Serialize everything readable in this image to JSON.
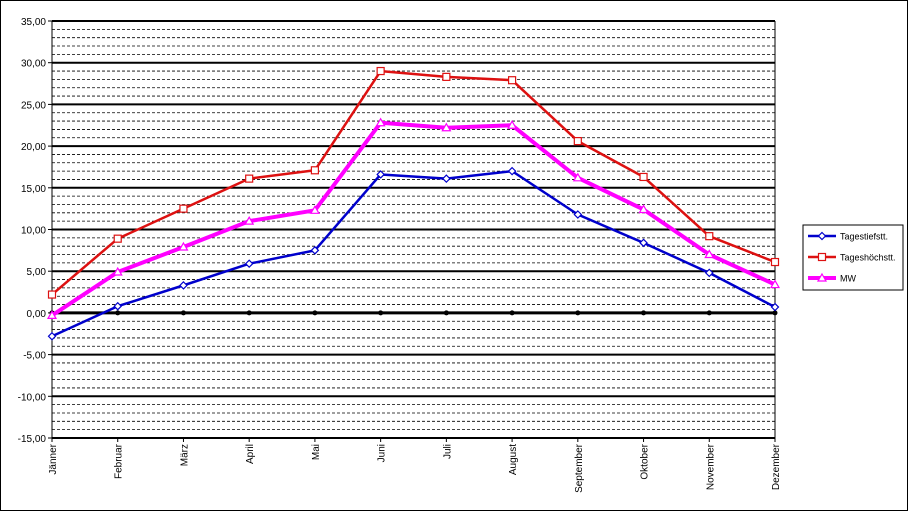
{
  "chart_data": {
    "type": "line",
    "categories": [
      "Jänner",
      "Februar",
      "März",
      "April",
      "Mai",
      "Juni",
      "Juli",
      "August",
      "September",
      "Oktober",
      "November",
      "Dezember"
    ],
    "series": [
      {
        "name": "Tagestiefstt.",
        "color": "#0000cc",
        "marker": "diamond",
        "values": [
          -2.8,
          0.8,
          3.3,
          5.9,
          7.5,
          16.6,
          16.1,
          17.0,
          11.8,
          8.4,
          4.8,
          0.7
        ]
      },
      {
        "name": "Tageshöchstt.",
        "color": "#dd1111",
        "marker": "square",
        "values": [
          2.2,
          8.9,
          12.5,
          16.1,
          17.1,
          29.0,
          28.3,
          27.9,
          20.6,
          16.3,
          9.2,
          6.1
        ]
      },
      {
        "name": "MW",
        "color": "#ff00ff",
        "marker": "triangle",
        "values": [
          -0.3,
          4.9,
          7.9,
          11.0,
          12.3,
          22.8,
          22.2,
          22.5,
          16.2,
          12.4,
          7.0,
          3.4
        ]
      }
    ],
    "ylim": [
      -15,
      35
    ],
    "yticks": [
      {
        "value": -15,
        "label": "-15,00"
      },
      {
        "value": -10,
        "label": "-10,00"
      },
      {
        "value": -5,
        "label": "-5,00"
      },
      {
        "value": 0,
        "label": "0,00"
      },
      {
        "value": 5,
        "label": "5,00"
      },
      {
        "value": 10,
        "label": "10,00"
      },
      {
        "value": 15,
        "label": "15,00"
      },
      {
        "value": 20,
        "label": "20,00"
      },
      {
        "value": 25,
        "label": "25,00"
      },
      {
        "value": 30,
        "label": "30,00"
      },
      {
        "value": 35,
        "label": "35,00"
      }
    ],
    "grid": true,
    "legend": "right"
  }
}
